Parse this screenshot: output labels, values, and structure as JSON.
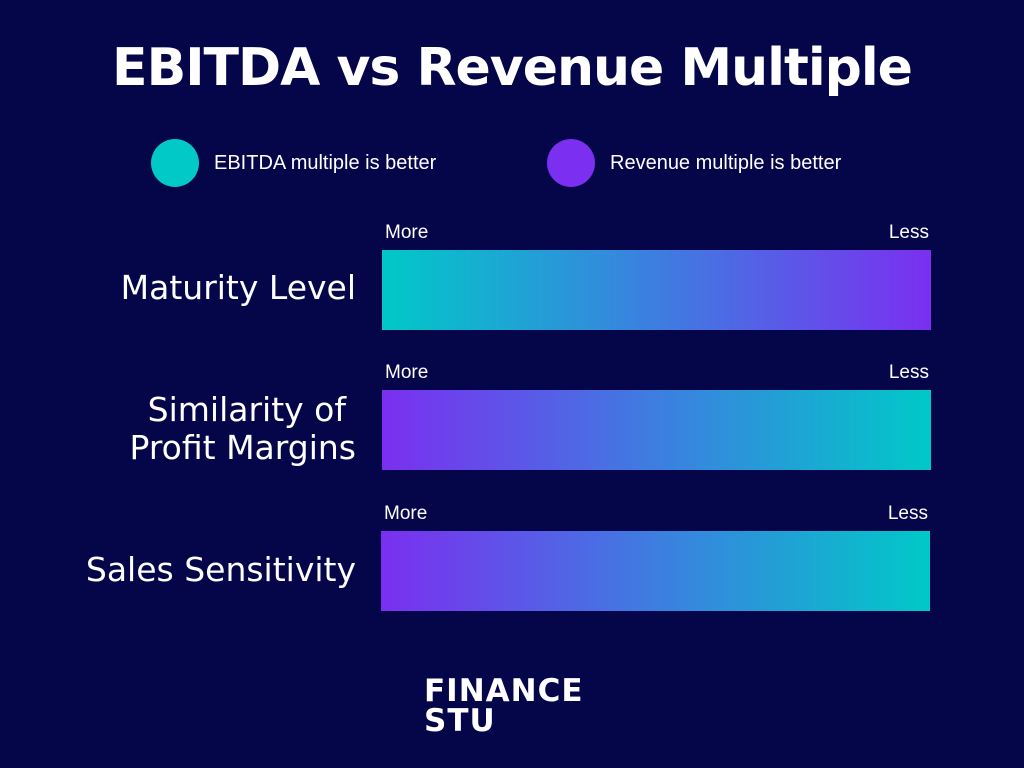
{
  "title": "EBITDA vs Revenue Multiple",
  "legend": [
    {
      "label": "EBITDA multiple is better",
      "color": "#00c9c8"
    },
    {
      "label": "Revenue multiple is better",
      "color": "#7b2ff0"
    }
  ],
  "rows": [
    {
      "label_lines": [
        "Maturity Level"
      ],
      "left": "More",
      "right": "Less",
      "gradient_from": "#00c9c8",
      "gradient_to": "#7b2ff0"
    },
    {
      "label_lines": [
        "Similarity of",
        "Profit Margins"
      ],
      "left": "More",
      "right": "Less",
      "gradient_from": "#7b2ff0",
      "gradient_to": "#00c9c8"
    },
    {
      "label_lines": [
        "Sales Sensitivity"
      ],
      "left": "More",
      "right": "Less",
      "gradient_from": "#7b2ff0",
      "gradient_to": "#00c9c8"
    }
  ],
  "logo": {
    "line1": "FINANCE",
    "line2": "STU"
  }
}
